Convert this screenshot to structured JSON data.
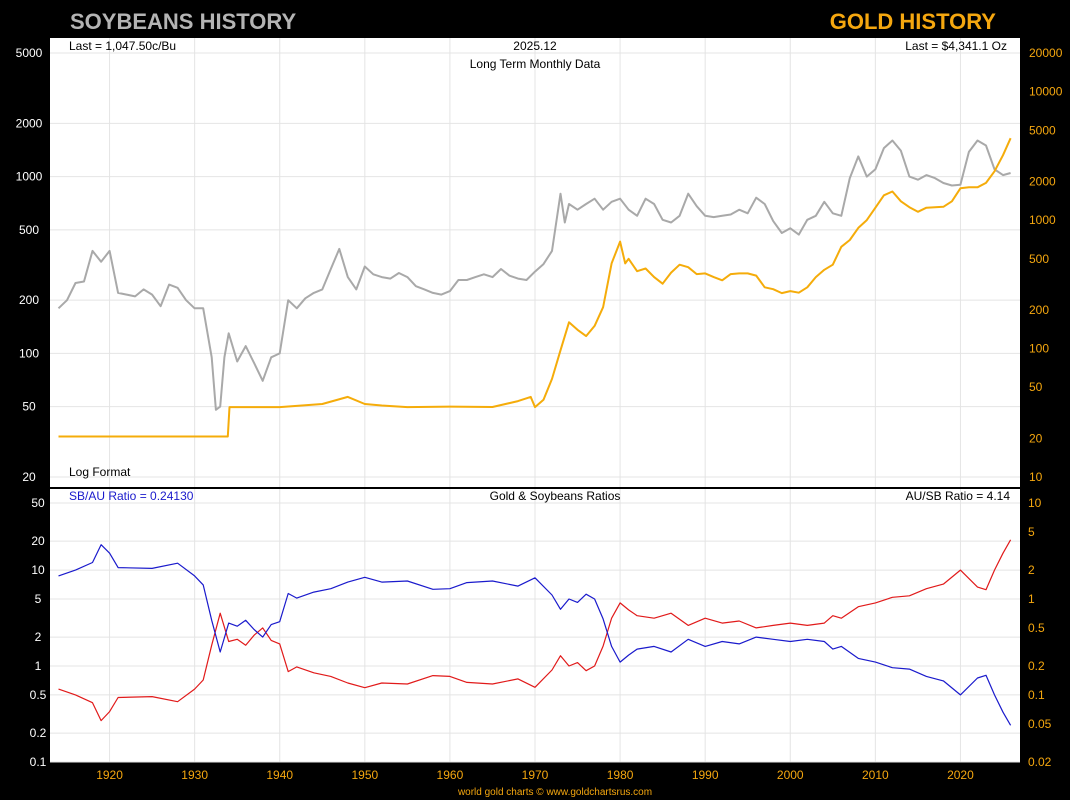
{
  "header": {
    "left_title": "SOYBEANS HISTORY",
    "right_title": "GOLD HISTORY"
  },
  "footer": {
    "credit": "world gold charts © www.goldchartsrus.com"
  },
  "colors": {
    "frame_bg": "#000000",
    "panel_bg": "#ffffff",
    "soy_title": "#b4b4b4",
    "gold_title": "#f5a70f",
    "soy_line": "#a9a9a9",
    "gold_line": "#f5ac0a",
    "sb_au_line": "#1a1acc",
    "au_sb_line": "#e11a1a",
    "left_ticks": "#ffffff",
    "right_ticks": "#f5a70f",
    "x_ticks": "#f5a70f",
    "grid": "#e4e4e4"
  },
  "chart_data": [
    {
      "id": "top",
      "type": "line",
      "title": "2025.12",
      "subtitle": "Long Term Monthly Data",
      "annotations": {
        "left_last": "Last = 1,047.50c/Bu",
        "right_last": "Last = $4,341.1 Oz",
        "scale_note": "Log Format"
      },
      "scale": "log",
      "grid": true,
      "left_axis": {
        "ticks": [
          "5000",
          "2000",
          "1000",
          "500",
          "200",
          "100",
          "50",
          "20"
        ],
        "ylim": [
          20,
          5000
        ]
      },
      "right_axis": {
        "ticks": [
          "20000",
          "10000",
          "5000",
          "2000",
          "1000",
          "500",
          "200",
          "100",
          "50",
          "20",
          "10"
        ],
        "ylim": [
          10,
          20000
        ]
      },
      "x_ticks": [
        "1920",
        "1930",
        "1940",
        "1950",
        "1960",
        "1970",
        "1980",
        "1990",
        "2000",
        "2010",
        "2020"
      ],
      "xlim": [
        1913,
        2027
      ],
      "series": [
        {
          "key": "soybeans",
          "axis": "left",
          "x": [
            1914,
            1915,
            1916,
            1917,
            1918,
            1919,
            1920,
            1921,
            1922,
            1923,
            1924,
            1925,
            1926,
            1927,
            1928,
            1929,
            1930,
            1931,
            1932,
            1932.5,
            1933,
            1933.5,
            1934,
            1935,
            1936,
            1937,
            1938,
            1939,
            1940,
            1941,
            1942,
            1943,
            1944,
            1945,
            1946,
            1947,
            1948,
            1949,
            1950,
            1951,
            1952,
            1953,
            1954,
            1955,
            1956,
            1957,
            1958,
            1959,
            1960,
            1961,
            1962,
            1963,
            1964,
            1965,
            1966,
            1967,
            1968,
            1969,
            1970,
            1971,
            1972,
            1973,
            1973.5,
            1974,
            1975,
            1976,
            1977,
            1978,
            1979,
            1980,
            1981,
            1982,
            1983,
            1984,
            1985,
            1986,
            1987,
            1988,
            1989,
            1990,
            1991,
            1992,
            1993,
            1994,
            1995,
            1996,
            1997,
            1998,
            1999,
            2000,
            2001,
            2002,
            2003,
            2004,
            2005,
            2006,
            2007,
            2008,
            2009,
            2010,
            2011,
            2012,
            2013,
            2014,
            2015,
            2016,
            2017,
            2018,
            2019,
            2020,
            2021,
            2022,
            2023,
            2024,
            2025,
            2025.9
          ],
          "y": [
            180,
            200,
            250,
            255,
            380,
            330,
            380,
            220,
            215,
            210,
            230,
            215,
            185,
            245,
            235,
            200,
            180,
            180,
            95,
            48,
            50,
            95,
            130,
            90,
            110,
            88,
            70,
            95,
            100,
            200,
            180,
            205,
            220,
            230,
            300,
            390,
            270,
            230,
            310,
            280,
            270,
            265,
            285,
            270,
            240,
            230,
            220,
            215,
            225,
            260,
            260,
            270,
            280,
            270,
            300,
            275,
            265,
            260,
            290,
            320,
            380,
            800,
            550,
            700,
            650,
            700,
            750,
            650,
            720,
            750,
            650,
            600,
            750,
            700,
            570,
            550,
            600,
            800,
            680,
            600,
            590,
            600,
            610,
            650,
            620,
            760,
            700,
            560,
            480,
            510,
            470,
            570,
            600,
            720,
            620,
            600,
            980,
            1300,
            1000,
            1100,
            1450,
            1600,
            1400,
            1000,
            960,
            1020,
            980,
            920,
            890,
            900,
            1380,
            1600,
            1500,
            1100,
            1020,
            1047.5
          ]
        },
        {
          "key": "gold",
          "axis": "right",
          "x": [
            1914,
            1933.9,
            1934.1,
            1940,
            1945,
            1948,
            1950,
            1952,
            1955,
            1960,
            1965,
            1968,
            1969.5,
            1970,
            1971,
            1972,
            1973,
            1974,
            1975,
            1976,
            1977,
            1978,
            1979,
            1980,
            1980.6,
            1981,
            1982,
            1983,
            1984,
            1985,
            1986,
            1987,
            1988,
            1989,
            1990,
            1991,
            1992,
            1993,
            1994,
            1995,
            1996,
            1997,
            1998,
            1999,
            2000,
            2001,
            2002,
            2003,
            2004,
            2005,
            2006,
            2007,
            2008,
            2009,
            2010,
            2011,
            2012,
            2013,
            2014,
            2015,
            2016,
            2017,
            2018,
            2019,
            2020,
            2021,
            2022,
            2023,
            2024,
            2025,
            2025.9
          ],
          "y": [
            20.67,
            20.67,
            35,
            35,
            37,
            42,
            37,
            36,
            35,
            35.3,
            35.1,
            39,
            42,
            35,
            40,
            58,
            97,
            160,
            140,
            125,
            150,
            210,
            460,
            680,
            460,
            500,
            400,
            420,
            360,
            320,
            390,
            450,
            430,
            380,
            385,
            360,
            340,
            380,
            385,
            385,
            370,
            300,
            290,
            270,
            280,
            272,
            300,
            360,
            410,
            450,
            620,
            700,
            870,
            1000,
            1250,
            1560,
            1670,
            1400,
            1260,
            1160,
            1250,
            1260,
            1270,
            1400,
            1770,
            1800,
            1800,
            1950,
            2400,
            3200,
            4341.1
          ]
        }
      ]
    },
    {
      "id": "bottom",
      "type": "line",
      "title": "Gold & Soybeans Ratios",
      "annotations": {
        "left_last": "SB/AU Ratio = 0.24130",
        "right_last": "AU/SB Ratio = 4.14"
      },
      "scale": "log",
      "grid": true,
      "left_axis": {
        "ticks": [
          "50",
          "20",
          "10",
          "5",
          "2",
          "1",
          "0.5",
          "0.2",
          "0.1"
        ],
        "ylim": [
          0.1,
          50
        ]
      },
      "right_axis": {
        "ticks": [
          "10",
          "5",
          "2",
          "1",
          "0.5",
          "0.2",
          "0.1",
          "0.05",
          "0.02"
        ],
        "ylim": [
          0.02,
          10
        ]
      },
      "series": [
        {
          "key": "sb_au",
          "name": "SB/AU Ratio",
          "axis": "left",
          "x": [
            1914,
            1916,
            1918,
            1919,
            1920,
            1921,
            1925,
            1928,
            1930,
            1931,
            1932,
            1933,
            1934,
            1935,
            1936,
            1937,
            1938,
            1939,
            1940,
            1941,
            1942,
            1944,
            1946,
            1948,
            1950,
            1952,
            1955,
            1958,
            1960,
            1962,
            1965,
            1968,
            1970,
            1972,
            1973,
            1974,
            1975,
            1976,
            1977,
            1978,
            1979,
            1980,
            1981,
            1982,
            1984,
            1986,
            1988,
            1990,
            1992,
            1994,
            1996,
            1998,
            2000,
            2002,
            2004,
            2005,
            2006,
            2008,
            2010,
            2012,
            2014,
            2016,
            2018,
            2020,
            2022,
            2023,
            2024,
            2025,
            2025.9
          ],
          "y": [
            8.7,
            10,
            12,
            18.4,
            15,
            10.6,
            10.4,
            11.8,
            8.7,
            7,
            3,
            1.4,
            2.8,
            2.6,
            3,
            2.4,
            2,
            2.7,
            2.9,
            5.7,
            5.1,
            5.9,
            6.4,
            7.5,
            8.4,
            7.5,
            7.7,
            6.3,
            6.4,
            7.4,
            7.7,
            6.8,
            8.3,
            5.5,
            3.9,
            5,
            4.6,
            5.6,
            5,
            3.1,
            1.6,
            1.1,
            1.3,
            1.5,
            1.6,
            1.4,
            1.9,
            1.6,
            1.8,
            1.7,
            2,
            1.9,
            1.8,
            1.9,
            1.8,
            1.5,
            1.6,
            1.2,
            1.1,
            0.96,
            0.93,
            0.78,
            0.7,
            0.5,
            0.75,
            0.8,
            0.5,
            0.33,
            0.2413
          ]
        },
        {
          "key": "au_sb",
          "name": "AU/SB Ratio",
          "axis": "right",
          "x": [
            1914,
            1916,
            1918,
            1919,
            1920,
            1921,
            1925,
            1928,
            1930,
            1931,
            1932,
            1933,
            1934,
            1935,
            1936,
            1937,
            1938,
            1939,
            1940,
            1941,
            1942,
            1944,
            1946,
            1948,
            1950,
            1952,
            1955,
            1958,
            1960,
            1962,
            1965,
            1968,
            1970,
            1972,
            1973,
            1974,
            1975,
            1976,
            1977,
            1978,
            1979,
            1980,
            1981,
            1982,
            1984,
            1986,
            1988,
            1990,
            1992,
            1994,
            1996,
            1998,
            2000,
            2002,
            2004,
            2005,
            2006,
            2008,
            2010,
            2012,
            2014,
            2016,
            2018,
            2020,
            2022,
            2023,
            2024,
            2025,
            2025.9
          ],
          "y": [
            0.115,
            0.1,
            0.083,
            0.054,
            0.067,
            0.094,
            0.096,
            0.085,
            0.115,
            0.143,
            0.33,
            0.71,
            0.36,
            0.38,
            0.33,
            0.42,
            0.5,
            0.37,
            0.34,
            0.175,
            0.196,
            0.17,
            0.156,
            0.133,
            0.119,
            0.133,
            0.13,
            0.159,
            0.156,
            0.135,
            0.13,
            0.147,
            0.12,
            0.182,
            0.256,
            0.2,
            0.217,
            0.179,
            0.2,
            0.323,
            0.63,
            0.91,
            0.77,
            0.67,
            0.63,
            0.71,
            0.53,
            0.63,
            0.56,
            0.59,
            0.5,
            0.53,
            0.56,
            0.53,
            0.56,
            0.67,
            0.63,
            0.83,
            0.91,
            1.04,
            1.08,
            1.28,
            1.43,
            2,
            1.33,
            1.25,
            2,
            3,
            4.14
          ]
        }
      ]
    }
  ]
}
